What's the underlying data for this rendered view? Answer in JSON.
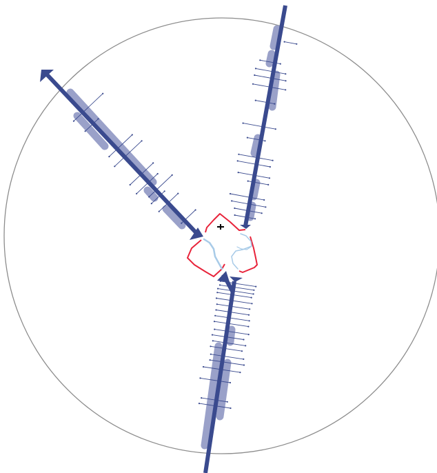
{
  "diagram": {
    "colors": {
      "main_line": "#3a4a8e",
      "band": "#9aa1c9",
      "tick": "#3a4a8e",
      "boundary": "#e8233a",
      "river": "#a8cbe8",
      "ring": "#8c8c8c",
      "marker": "#000000"
    },
    "icons": {
      "arrow_out": "arrow-head-icon",
      "arrow_in": "arrow-head-inward-icon",
      "center": "plus-icon"
    }
  }
}
